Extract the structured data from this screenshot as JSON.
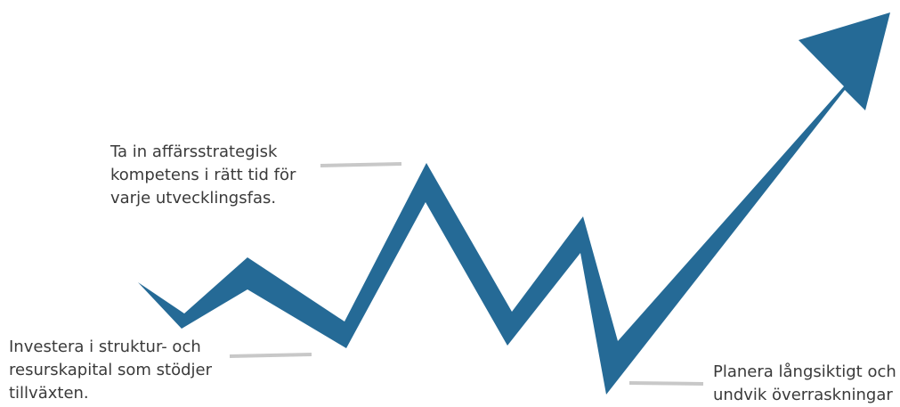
{
  "colors": {
    "arrow": "#256a96",
    "connector": "#c8c8c8",
    "text": "#3a3a3a"
  },
  "labels": {
    "top": {
      "lines": [
        "Ta in affärsstrategisk",
        "kompetens i rätt tid för",
        "varje utvecklingsfas."
      ]
    },
    "left": {
      "lines": [
        "Investera i struktur- och",
        "resurskapital som stödjer",
        "tillväxten."
      ]
    },
    "right": {
      "lines": [
        "Planera långsiktigt och",
        "undvik överraskningar"
      ]
    }
  }
}
